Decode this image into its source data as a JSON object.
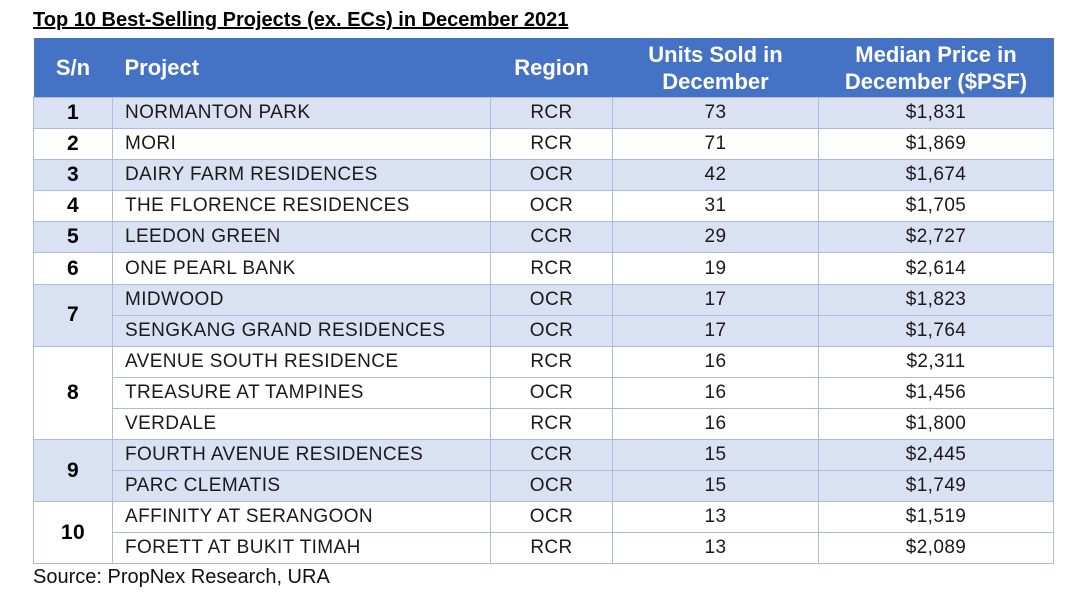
{
  "title": "Top 10 Best-Selling Projects (ex. ECs) in December 2021",
  "table": {
    "columns": [
      "S/n",
      "Project",
      "Region",
      "Units Sold in December",
      "Median Price in December ($PSF)"
    ],
    "groups": [
      {
        "rank": "1",
        "rows": [
          [
            "NORMANTON PARK",
            "RCR",
            73,
            "$1,831"
          ]
        ]
      },
      {
        "rank": "2",
        "rows": [
          [
            "MORI",
            "RCR",
            71,
            "$1,869"
          ]
        ]
      },
      {
        "rank": "3",
        "rows": [
          [
            "DAIRY FARM RESIDENCES",
            "OCR",
            42,
            "$1,674"
          ]
        ]
      },
      {
        "rank": "4",
        "rows": [
          [
            "THE FLORENCE RESIDENCES",
            "OCR",
            31,
            "$1,705"
          ]
        ]
      },
      {
        "rank": "5",
        "rows": [
          [
            "LEEDON GREEN",
            "CCR",
            29,
            "$2,727"
          ]
        ]
      },
      {
        "rank": "6",
        "rows": [
          [
            "ONE PEARL BANK",
            "RCR",
            19,
            "$2,614"
          ]
        ]
      },
      {
        "rank": "7",
        "rows": [
          [
            "MIDWOOD",
            "OCR",
            17,
            "$1,823"
          ],
          [
            "SENGKANG GRAND RESIDENCES",
            "OCR",
            17,
            "$1,764"
          ]
        ]
      },
      {
        "rank": "8",
        "rows": [
          [
            "AVENUE SOUTH RESIDENCE",
            "RCR",
            16,
            "$2,311"
          ],
          [
            "TREASURE AT TAMPINES",
            "OCR",
            16,
            "$1,456"
          ],
          [
            "VERDALE",
            "RCR",
            16,
            "$1,800"
          ]
        ]
      },
      {
        "rank": "9",
        "rows": [
          [
            "FOURTH AVENUE RESIDENCES",
            "CCR",
            15,
            "$2,445"
          ],
          [
            "PARC CLEMATIS",
            "OCR",
            15,
            "$1,749"
          ]
        ]
      },
      {
        "rank": "10",
        "rows": [
          [
            "AFFINITY AT SERANGOON",
            "OCR",
            13,
            "$1,519"
          ],
          [
            "FORETT AT BUKIT TIMAH",
            "RCR",
            13,
            "$2,089"
          ]
        ]
      }
    ]
  },
  "source": "Source: PropNex Research, URA"
}
